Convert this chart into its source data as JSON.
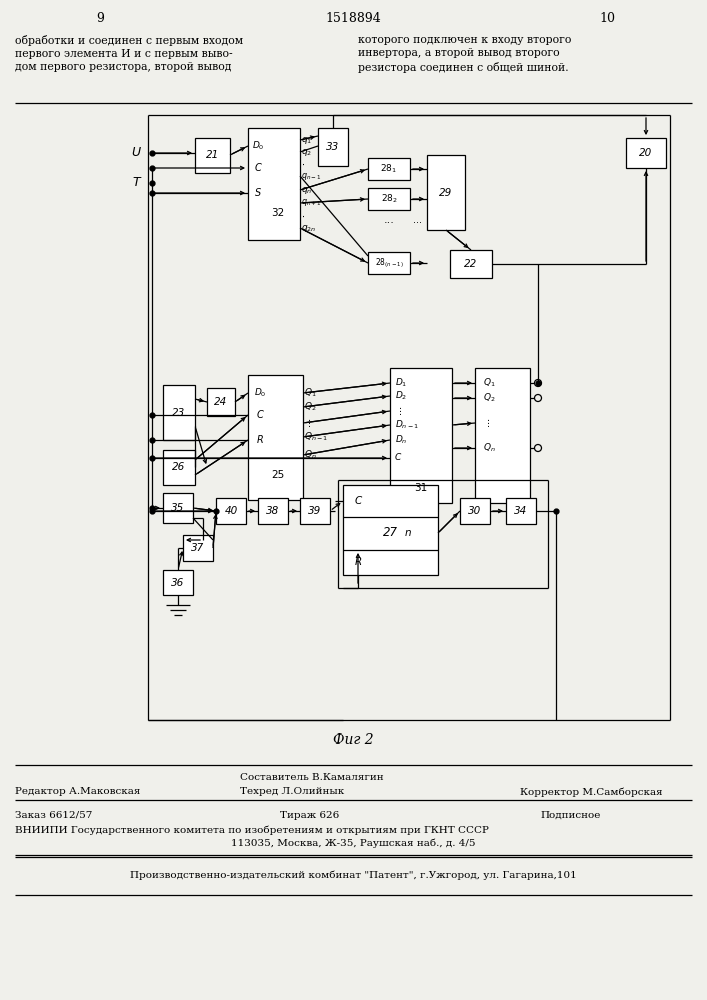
{
  "patent_number": "1518894",
  "page_left": "9",
  "page_right": "10",
  "fig_label": "Фиг 2",
  "top_text_left": "обработки и соединен с первым входом\nпервого элемента И и с первым выво-\nдом первого резистора, второй вывод",
  "top_text_right": "которого подключен к входу второго\nинвертора, а второй вывод второго\nрезистора соединен с общей шиной.",
  "footer1_left": "Редактор А.Маковская",
  "footer1_center_top": "Составитель В.Камалягин",
  "footer1_center_bot": "Техред Л.Олийнык",
  "footer1_right": "Корректор М.Самборская",
  "footer2_l": "Заказ 6612/57",
  "footer2_c": "Тираж 626",
  "footer2_r": "Подписное",
  "footer3": "ВНИИПИ Государственного комитета по изобретениям и открытиям при ГКНТ СССР",
  "footer4": "113035, Москва, Ж-35, Раушская наб., д. 4/5",
  "footer5": "Производственно-издательский комбинат \"Патент\", г.Ужгород, ул. Гагарина,101",
  "bg_color": "#f0f0eb"
}
